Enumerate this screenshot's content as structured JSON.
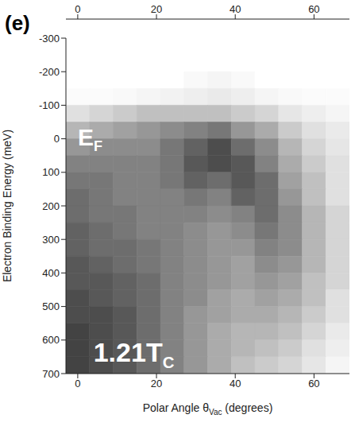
{
  "chart_data": {
    "type": "heatmap",
    "title": "(e)",
    "xlabel": {
      "text": "Polar Angle θ",
      "subscript": "Vac",
      "suffix": " (degrees)"
    },
    "ylabel": "Electron Binding Energy  (meV)",
    "xlim": [
      -3,
      69
    ],
    "xticks": [
      0,
      20,
      40,
      60
    ],
    "ylim": [
      -300,
      700
    ],
    "yticks": [
      -300,
      -200,
      -100,
      0,
      100,
      200,
      300,
      400,
      500,
      600,
      700
    ],
    "x2lim": [
      -3,
      69
    ],
    "x2ticks": [
      0,
      20,
      40,
      60
    ],
    "x_bins": [
      -3,
      3,
      9,
      15,
      21,
      27,
      33,
      39,
      45,
      51,
      57,
      63,
      69
    ],
    "y_bins": [
      -300,
      -250,
      -200,
      -150,
      -100,
      -50,
      0,
      50,
      100,
      150,
      200,
      250,
      300,
      350,
      400,
      450,
      500,
      550,
      600,
      650,
      700
    ],
    "cells": [
      [
        0,
        0,
        0,
        0,
        0,
        0,
        0,
        0,
        0,
        0,
        0,
        0
      ],
      [
        0,
        0,
        0,
        0,
        0,
        0,
        0,
        0,
        0,
        0,
        0,
        0
      ],
      [
        0,
        0,
        0,
        0,
        0,
        0.03,
        0.05,
        0.03,
        0,
        0,
        0,
        0
      ],
      [
        0.02,
        0.02,
        0.03,
        0.05,
        0.06,
        0.08,
        0.1,
        0.08,
        0.05,
        0.03,
        0.02,
        0.02
      ],
      [
        0.15,
        0.2,
        0.25,
        0.3,
        0.3,
        0.3,
        0.3,
        0.25,
        0.2,
        0.12,
        0.08,
        0.05
      ],
      [
        0.35,
        0.4,
        0.45,
        0.5,
        0.55,
        0.6,
        0.65,
        0.5,
        0.4,
        0.25,
        0.15,
        0.1
      ],
      [
        0.5,
        0.55,
        0.55,
        0.55,
        0.65,
        0.75,
        0.85,
        0.7,
        0.55,
        0.35,
        0.2,
        0.12
      ],
      [
        0.6,
        0.6,
        0.6,
        0.6,
        0.65,
        0.8,
        0.85,
        0.8,
        0.6,
        0.4,
        0.25,
        0.15
      ],
      [
        0.65,
        0.65,
        0.6,
        0.6,
        0.65,
        0.75,
        0.7,
        0.8,
        0.7,
        0.45,
        0.3,
        0.15
      ],
      [
        0.7,
        0.65,
        0.6,
        0.6,
        0.6,
        0.65,
        0.6,
        0.75,
        0.7,
        0.5,
        0.3,
        0.15
      ],
      [
        0.7,
        0.65,
        0.65,
        0.6,
        0.6,
        0.6,
        0.55,
        0.6,
        0.7,
        0.55,
        0.35,
        0.2
      ],
      [
        0.75,
        0.7,
        0.65,
        0.6,
        0.6,
        0.55,
        0.5,
        0.55,
        0.65,
        0.55,
        0.35,
        0.2
      ],
      [
        0.75,
        0.7,
        0.7,
        0.65,
        0.6,
        0.55,
        0.5,
        0.5,
        0.6,
        0.55,
        0.35,
        0.2
      ],
      [
        0.8,
        0.75,
        0.7,
        0.65,
        0.6,
        0.55,
        0.5,
        0.45,
        0.55,
        0.5,
        0.35,
        0.2
      ],
      [
        0.8,
        0.8,
        0.75,
        0.7,
        0.6,
        0.55,
        0.5,
        0.45,
        0.5,
        0.45,
        0.3,
        0.2
      ],
      [
        0.85,
        0.8,
        0.75,
        0.7,
        0.6,
        0.55,
        0.45,
        0.4,
        0.45,
        0.4,
        0.3,
        0.15
      ],
      [
        0.85,
        0.85,
        0.8,
        0.7,
        0.6,
        0.5,
        0.45,
        0.4,
        0.4,
        0.35,
        0.25,
        0.15
      ],
      [
        0.9,
        0.85,
        0.8,
        0.7,
        0.6,
        0.5,
        0.4,
        0.35,
        0.35,
        0.3,
        0.2,
        0.1
      ],
      [
        0.9,
        0.85,
        0.8,
        0.7,
        0.6,
        0.5,
        0.4,
        0.35,
        0.3,
        0.25,
        0.15,
        0.08
      ],
      [
        0.9,
        0.85,
        0.8,
        0.7,
        0.6,
        0.5,
        0.4,
        0.3,
        0.25,
        0.2,
        0.12,
        0.05
      ]
    ],
    "color_range": [
      0,
      1
    ],
    "colors": [
      "#ffffff",
      "#2e2e2e"
    ],
    "annotations": [
      {
        "text": "E",
        "subscript": "F",
        "x": 0,
        "y": 20
      },
      {
        "text": "1.21T",
        "subscript": "C",
        "x": 4,
        "y": 665
      }
    ]
  }
}
